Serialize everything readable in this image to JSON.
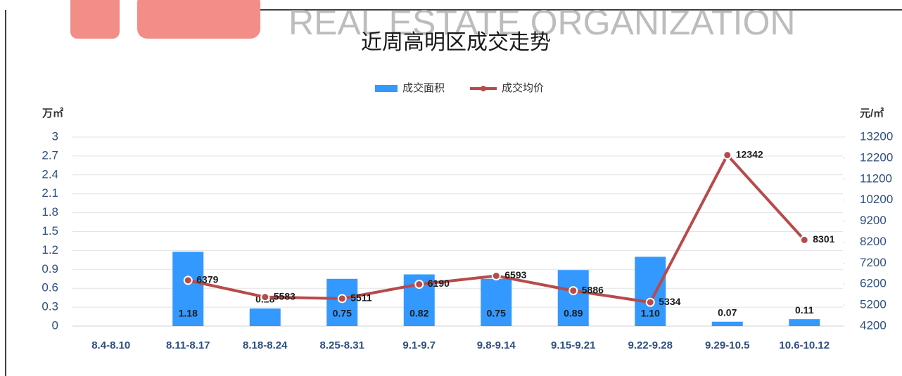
{
  "chart_data": {
    "type": "bar-line",
    "title": "近周高明区成交走势",
    "watermark": "REAL ESTATE ORGANIZATION",
    "y_label": "万㎡",
    "y2_label": "元/㎡",
    "categories": [
      "8.4-8.10",
      "8.11-8.17",
      "8.18-8.24",
      "8.25-8.31",
      "9.1-9.7",
      "9.8-9.14",
      "9.15-9.21",
      "9.22-9.28",
      "9.29-10.5",
      "10.6-10.12"
    ],
    "series": [
      {
        "name": "成交面积",
        "type": "bar",
        "color": "#3399ff",
        "values": [
          null,
          1.18,
          0.28,
          0.75,
          0.82,
          0.75,
          0.89,
          1.1,
          0.07,
          0.11
        ],
        "value_labels": [
          null,
          "1.18",
          "0.28",
          "0.75",
          "0.82",
          "0.75",
          "0.89",
          "1.10",
          "0.07",
          "0.11"
        ]
      },
      {
        "name": "成交均价",
        "type": "line",
        "color": "#b84a4a",
        "axis": "y2",
        "values": [
          null,
          6379,
          5583,
          5511,
          6190,
          6593,
          5886,
          5334,
          12342,
          8301
        ]
      }
    ],
    "ylim": [
      0,
      3
    ],
    "yticks": [
      0,
      0.3,
      0.6,
      0.9,
      1.2,
      1.5,
      1.8,
      2.1,
      2.4,
      2.7,
      3
    ],
    "y2lim": [
      4200,
      13200
    ],
    "y2ticks": [
      4200,
      5200,
      6200,
      7200,
      8200,
      9200,
      10200,
      11200,
      12200,
      13200
    ],
    "grid": true,
    "legend": "top"
  }
}
